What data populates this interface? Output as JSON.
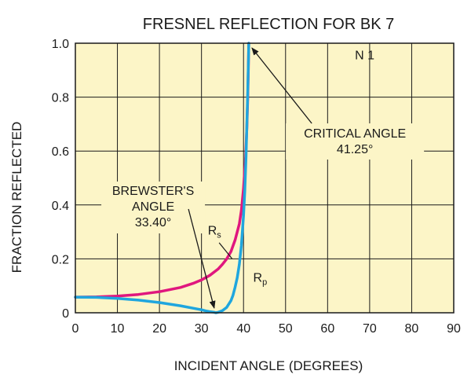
{
  "chart_data": {
    "type": "line",
    "title": "FRESNEL REFLECTION FOR BK 7",
    "xlabel": "INCIDENT ANGLE (DEGREES)",
    "ylabel": "FRACTION REFLECTED",
    "xlim": [
      0,
      90
    ],
    "ylim": [
      0,
      1.0
    ],
    "xticks": [
      "0",
      "10",
      "20",
      "30",
      "40",
      "50",
      "60",
      "70",
      "80",
      "90"
    ],
    "yticks": [
      "0",
      "0.2",
      "0.4",
      "0.6",
      "0.8",
      "1.0"
    ],
    "grid": true,
    "background": "#fcf5c7",
    "series": [
      {
        "name": "R",
        "name_sub": "s",
        "color": "#e0177e",
        "x": [
          0,
          5,
          10,
          15,
          20,
          25,
          28,
          30,
          32,
          34,
          35,
          36,
          37,
          38,
          39,
          39.5,
          40,
          40.5,
          40.8,
          41,
          41.1,
          41.2,
          41.25
        ],
        "y": [
          0.058,
          0.059,
          0.062,
          0.068,
          0.078,
          0.094,
          0.109,
          0.122,
          0.139,
          0.163,
          0.18,
          0.2,
          0.227,
          0.27,
          0.33,
          0.38,
          0.46,
          0.58,
          0.69,
          0.8,
          0.87,
          0.95,
          1.0
        ]
      },
      {
        "name": "R",
        "name_sub": "p",
        "color": "#1fa6de",
        "x": [
          0,
          5,
          10,
          15,
          20,
          25,
          28,
          30,
          31,
          32,
          33,
          33.4,
          34,
          35,
          36,
          37,
          37.5,
          38,
          38.5,
          39,
          39.5,
          40,
          40.3,
          40.6,
          40.8,
          41,
          41.1,
          41.2,
          41.25
        ],
        "y": [
          0.058,
          0.057,
          0.053,
          0.047,
          0.038,
          0.026,
          0.017,
          0.011,
          0.007,
          0.004,
          0.002,
          0.0,
          0.002,
          0.008,
          0.02,
          0.045,
          0.065,
          0.095,
          0.13,
          0.18,
          0.25,
          0.36,
          0.45,
          0.58,
          0.7,
          0.82,
          0.89,
          0.95,
          1.0
        ]
      }
    ],
    "annotations": {
      "n_label": "N 1",
      "critical": {
        "lines": [
          "CRITICAL ANGLE",
          "41.25°"
        ],
        "x": 41.25,
        "y": 1.0
      },
      "brewster": {
        "lines": [
          "BREWSTER'S",
          "ANGLE",
          "33.40°"
        ],
        "x": 33.4,
        "y": 0.0
      }
    }
  }
}
